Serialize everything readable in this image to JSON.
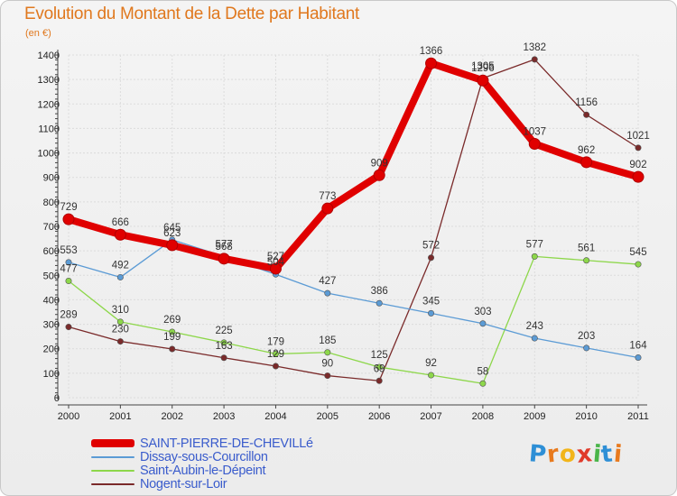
{
  "chart_data": {
    "type": "line",
    "title": "Evolution du Montant de la Dette par Habitant",
    "subtitle": "(en €)",
    "x": [
      "2000",
      "2001",
      "2002",
      "2003",
      "2004",
      "2005",
      "2006",
      "2007",
      "2008",
      "2009",
      "2010",
      "2011"
    ],
    "ylim": [
      0,
      1400
    ],
    "yticks": [
      0,
      100,
      200,
      300,
      400,
      500,
      600,
      700,
      800,
      900,
      1000,
      1100,
      1200,
      1300,
      1400
    ],
    "grid": true,
    "legend_position": "bottom-left",
    "series": [
      {
        "name": "SAINT-PIERRE-DE-CHEVILLé",
        "color": "#e00000",
        "values": [
          729,
          666,
          623,
          568,
          527,
          773,
          909,
          1366,
          1296,
          1037,
          962,
          902
        ],
        "labels": [
          "729",
          "666",
          "623",
          "568",
          "527",
          "773",
          "909",
          "1366",
          "1296",
          "1037",
          "962",
          "902"
        ]
      },
      {
        "name": "Dissay-sous-Courcillon",
        "color": "#5b9bd5",
        "values": [
          553,
          492,
          645,
          577,
          504,
          427,
          386,
          345,
          303,
          243,
          203,
          164
        ],
        "labels": [
          "553",
          "492",
          "645",
          "577",
          "504",
          "427",
          "386",
          "345",
          "303",
          "243",
          "203",
          "164"
        ]
      },
      {
        "name": "Saint-Aubin-le-Dépeint",
        "color": "#8dd74a",
        "values": [
          477,
          310,
          269,
          225,
          179,
          185,
          125,
          92,
          58,
          577,
          561,
          545
        ],
        "labels": [
          "477",
          "310",
          "269",
          "225",
          "179",
          "185",
          "125",
          "92",
          "58",
          "577",
          "561",
          "545"
        ]
      },
      {
        "name": "Nogent-sur-Loir",
        "color": "#7a2a2a",
        "values": [
          289,
          230,
          199,
          163,
          129,
          90,
          69,
          572,
          1305,
          1382,
          1156,
          1021
        ],
        "labels": [
          "289",
          "230",
          "199",
          "163",
          "129",
          "90",
          "69",
          "572",
          "1305",
          "1382",
          "1156",
          "1021"
        ]
      }
    ]
  },
  "logo": {
    "text": "Proxiti",
    "letters": [
      "P",
      "r",
      "o",
      "x",
      "i",
      "t",
      "i"
    ],
    "colors": [
      "#2e8fd6",
      "#e87a1e",
      "#f2b51a",
      "#e03a2a",
      "#4ab54a",
      "#2e8fd6",
      "#e87a1e"
    ]
  }
}
